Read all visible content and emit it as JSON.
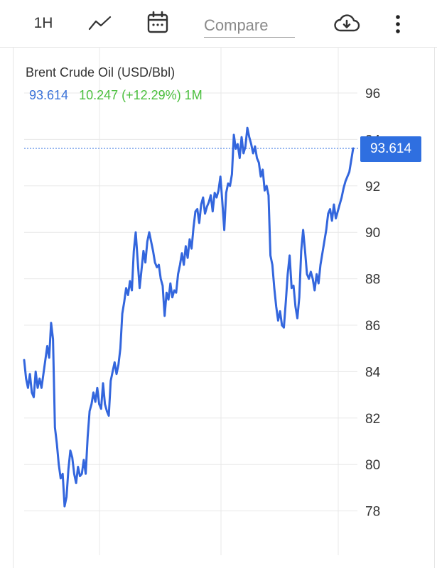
{
  "toolbar": {
    "interval_label": "1H",
    "chart_type_icon": "line-chart-icon",
    "calendar_icon": "calendar-icon",
    "compare_placeholder": "Compare",
    "download_icon": "cloud-download-icon",
    "menu_icon": "more-vertical-icon"
  },
  "legend": {
    "title": "Brent Crude Oil (USD/Bbl)",
    "price": "93.614",
    "change": "10.247 (+12.29%) 1M"
  },
  "price_tag": "93.614",
  "colors": {
    "line": "#3366dd",
    "accent": "#2f6fe0",
    "positive": "#4bbf3e",
    "grid": "#e8e8e8"
  },
  "chart_data": {
    "type": "line",
    "title": "Brent Crude Oil (USD/Bbl)",
    "xlabel": "",
    "ylabel": "",
    "ylim": [
      76,
      98
    ],
    "yticks": [
      78,
      80,
      82,
      84,
      86,
      88,
      90,
      92,
      94,
      96
    ],
    "grid": true,
    "last_value": 93.614,
    "series": [
      {
        "values": [
          84.5,
          83.7,
          83.3,
          83.9,
          83.1,
          82.9,
          84.0,
          83.3,
          83.7,
          83.3,
          83.9,
          84.5,
          85.1,
          84.6,
          86.1,
          85.4,
          81.6,
          80.9,
          80.0,
          79.4,
          79.6,
          78.2,
          78.6,
          79.8,
          80.6,
          80.3,
          79.6,
          79.2,
          79.9,
          79.5,
          79.6,
          80.2,
          79.6,
          81.2,
          82.3,
          82.6,
          83.1,
          82.7,
          83.3,
          82.6,
          82.4,
          83.5,
          82.6,
          82.3,
          82.1,
          83.6,
          84.0,
          84.4,
          83.9,
          84.3,
          85.0,
          86.5,
          87.0,
          87.6,
          87.3,
          87.9,
          87.5,
          89.2,
          90.0,
          88.8,
          87.6,
          88.4,
          89.2,
          88.7,
          89.6,
          90.0,
          89.6,
          89.2,
          88.7,
          88.5,
          88.6,
          88.0,
          87.7,
          86.4,
          87.4,
          87.1,
          87.8,
          87.2,
          87.5,
          87.4,
          88.2,
          88.6,
          89.1,
          88.6,
          89.4,
          88.9,
          89.7,
          89.3,
          90.2,
          90.9,
          91.0,
          90.4,
          91.2,
          91.5,
          90.8,
          91.1,
          91.3,
          91.6,
          90.9,
          91.7,
          91.5,
          91.8,
          92.4,
          91.3,
          90.1,
          91.7,
          92.1,
          92.0,
          92.5,
          94.2,
          93.6,
          93.8,
          93.2,
          94.1,
          93.4,
          93.7,
          94.5,
          94.1,
          93.8,
          93.4,
          93.7,
          93.2,
          93.0,
          92.4,
          92.7,
          91.8,
          92.0,
          91.6,
          89.0,
          88.6,
          87.6,
          86.8,
          86.2,
          86.6,
          86.0,
          85.9,
          87.0,
          88.2,
          89.0,
          87.6,
          87.7,
          86.8,
          86.3,
          87.2,
          89.2,
          90.1,
          89.2,
          88.2,
          88.0,
          88.3,
          88.0,
          87.5,
          88.2,
          87.8,
          88.6,
          89.1,
          89.6,
          90.1,
          90.8,
          91.0,
          90.5,
          91.2,
          90.6,
          90.9,
          91.2,
          91.5,
          91.9,
          92.2,
          92.4,
          92.6,
          93.1,
          93.614
        ]
      }
    ]
  }
}
